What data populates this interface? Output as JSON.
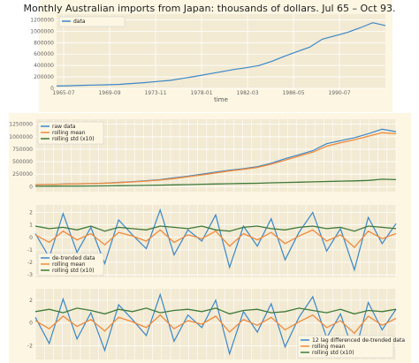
{
  "colors": {
    "figure_bg": "#fdf6e3",
    "axes_bg": "#f2ead3",
    "grid": "#ffffff",
    "blue": "#3a87c8",
    "orange": "#f08a3c",
    "green": "#3d7a3a"
  },
  "chart_data": [
    {
      "type": "line",
      "title": "Monthly Australian imports from Japan: thousands of dollars. Jul 65 – Oct 93.",
      "xlabel": "time",
      "ylabel": "",
      "x_ticks": [
        "1965-07",
        "1969-09",
        "1973-11",
        "1978-01",
        "1982-03",
        "1986-05",
        "1990-07"
      ],
      "y_ticks": [
        "0",
        "200000",
        "400000",
        "600000",
        "800000",
        "1000000",
        "1200000"
      ],
      "ylim": [
        0,
        1300000
      ],
      "grid": true,
      "legend_position": "top-left",
      "series": [
        {
          "name": "data",
          "color": "#3a87c8",
          "values": [
            40000,
            45000,
            52000,
            58000,
            62000,
            70000,
            85000,
            100000,
            120000,
            140000,
            175000,
            210000,
            250000,
            290000,
            330000,
            360000,
            400000,
            470000,
            560000,
            640000,
            720000,
            860000,
            920000,
            980000,
            1060000,
            1150000,
            1100000
          ]
        }
      ]
    },
    {
      "type": "line",
      "y_ticks": [
        "0",
        "250000",
        "500000",
        "750000",
        "1000000",
        "1250000"
      ],
      "ylim": [
        -100000,
        1350000
      ],
      "grid": true,
      "legend_position": "top-left",
      "series": [
        {
          "name": "raw data",
          "color": "#3a87c8",
          "values": [
            40000,
            45000,
            52000,
            58000,
            62000,
            70000,
            85000,
            100000,
            120000,
            140000,
            175000,
            210000,
            250000,
            290000,
            330000,
            360000,
            400000,
            470000,
            560000,
            640000,
            720000,
            860000,
            920000,
            980000,
            1060000,
            1150000,
            1100000
          ]
        },
        {
          "name": "rolling mean",
          "color": "#f08a3c",
          "values": [
            40000,
            44000,
            50000,
            56000,
            61000,
            68000,
            80000,
            95000,
            112000,
            132000,
            162000,
            198000,
            235000,
            275000,
            315000,
            348000,
            385000,
            450000,
            530000,
            610000,
            690000,
            810000,
            880000,
            940000,
            1010000,
            1080000,
            1060000
          ]
        },
        {
          "name": "rolling std (x10)",
          "color": "#3d7a3a",
          "values": [
            8000,
            9000,
            11000,
            12000,
            13000,
            15000,
            18000,
            22000,
            26000,
            30000,
            36000,
            42000,
            48000,
            54000,
            60000,
            64000,
            68000,
            76000,
            84000,
            90000,
            96000,
            104000,
            110000,
            116000,
            124000,
            150000,
            140000
          ]
        }
      ]
    },
    {
      "type": "line",
      "y_ticks": [
        "-3",
        "-2",
        "-1",
        "0",
        "1",
        "2"
      ],
      "ylim": [
        -3.2,
        2.6
      ],
      "grid": true,
      "legend_position": "bottom-left",
      "series": [
        {
          "name": "de-trended data",
          "color": "#3a87c8",
          "values": [
            0.3,
            -1.6,
            1.9,
            -1.2,
            0.8,
            -2.1,
            1.4,
            0.2,
            -0.9,
            2.2,
            -1.4,
            0.6,
            -0.3,
            1.8,
            -2.4,
            0.9,
            -0.7,
            1.5,
            -1.8,
            0.4,
            2.0,
            -1.1,
            0.7,
            -2.6,
            1.6,
            -0.5,
            1.1
          ]
        },
        {
          "name": "rolling mean",
          "color": "#f08a3c",
          "values": [
            0.2,
            -0.4,
            0.5,
            -0.2,
            0.3,
            -0.6,
            0.4,
            0.1,
            -0.3,
            0.6,
            -0.4,
            0.2,
            -0.1,
            0.5,
            -0.7,
            0.3,
            -0.2,
            0.4,
            -0.5,
            0.1,
            0.6,
            -0.3,
            0.2,
            -0.8,
            0.5,
            -0.1,
            0.3
          ]
        },
        {
          "name": "rolling std (x10)",
          "color": "#3d7a3a",
          "values": [
            0.9,
            0.7,
            0.8,
            0.6,
            0.9,
            0.5,
            0.8,
            0.7,
            0.6,
            0.9,
            0.8,
            0.7,
            0.9,
            0.6,
            0.5,
            0.8,
            0.9,
            0.7,
            0.6,
            0.8,
            0.9,
            0.7,
            0.8,
            0.5,
            0.9,
            0.8,
            0.7
          ]
        }
      ]
    },
    {
      "type": "line",
      "y_ticks": [
        "-2",
        "0",
        "2"
      ],
      "ylim": [
        -3.2,
        3.0
      ],
      "grid": true,
      "legend_position": "bottom-right",
      "series": [
        {
          "name": "12 lag differenced de-trended data",
          "color": "#3a87c8",
          "values": [
            0.5,
            -1.8,
            2.1,
            -1.4,
            0.9,
            -2.4,
            1.6,
            0.3,
            -1.1,
            2.5,
            -1.6,
            0.7,
            -0.4,
            2.0,
            -2.7,
            1.0,
            -0.8,
            1.7,
            -2.1,
            0.5,
            2.3,
            -1.3,
            0.8,
            -2.8,
            1.8,
            -0.6,
            1.2
          ]
        },
        {
          "name": "rolling mean",
          "color": "#f08a3c",
          "values": [
            0.2,
            -0.5,
            0.6,
            -0.3,
            0.3,
            -0.7,
            0.5,
            0.1,
            -0.4,
            0.7,
            -0.5,
            0.2,
            -0.1,
            0.6,
            -0.8,
            0.3,
            -0.2,
            0.5,
            -0.6,
            0.1,
            0.7,
            -0.4,
            0.2,
            -0.9,
            0.6,
            -0.2,
            0.4
          ]
        },
        {
          "name": "rolling std (x10)",
          "color": "#3d7a3a",
          "values": [
            1.0,
            1.2,
            0.9,
            1.3,
            1.1,
            0.8,
            1.2,
            1.0,
            1.3,
            0.9,
            1.1,
            1.2,
            1.0,
            1.3,
            0.8,
            1.1,
            1.2,
            0.9,
            1.0,
            1.3,
            1.1,
            0.9,
            1.2,
            0.8,
            1.1,
            1.0,
            1.2
          ]
        }
      ]
    }
  ]
}
